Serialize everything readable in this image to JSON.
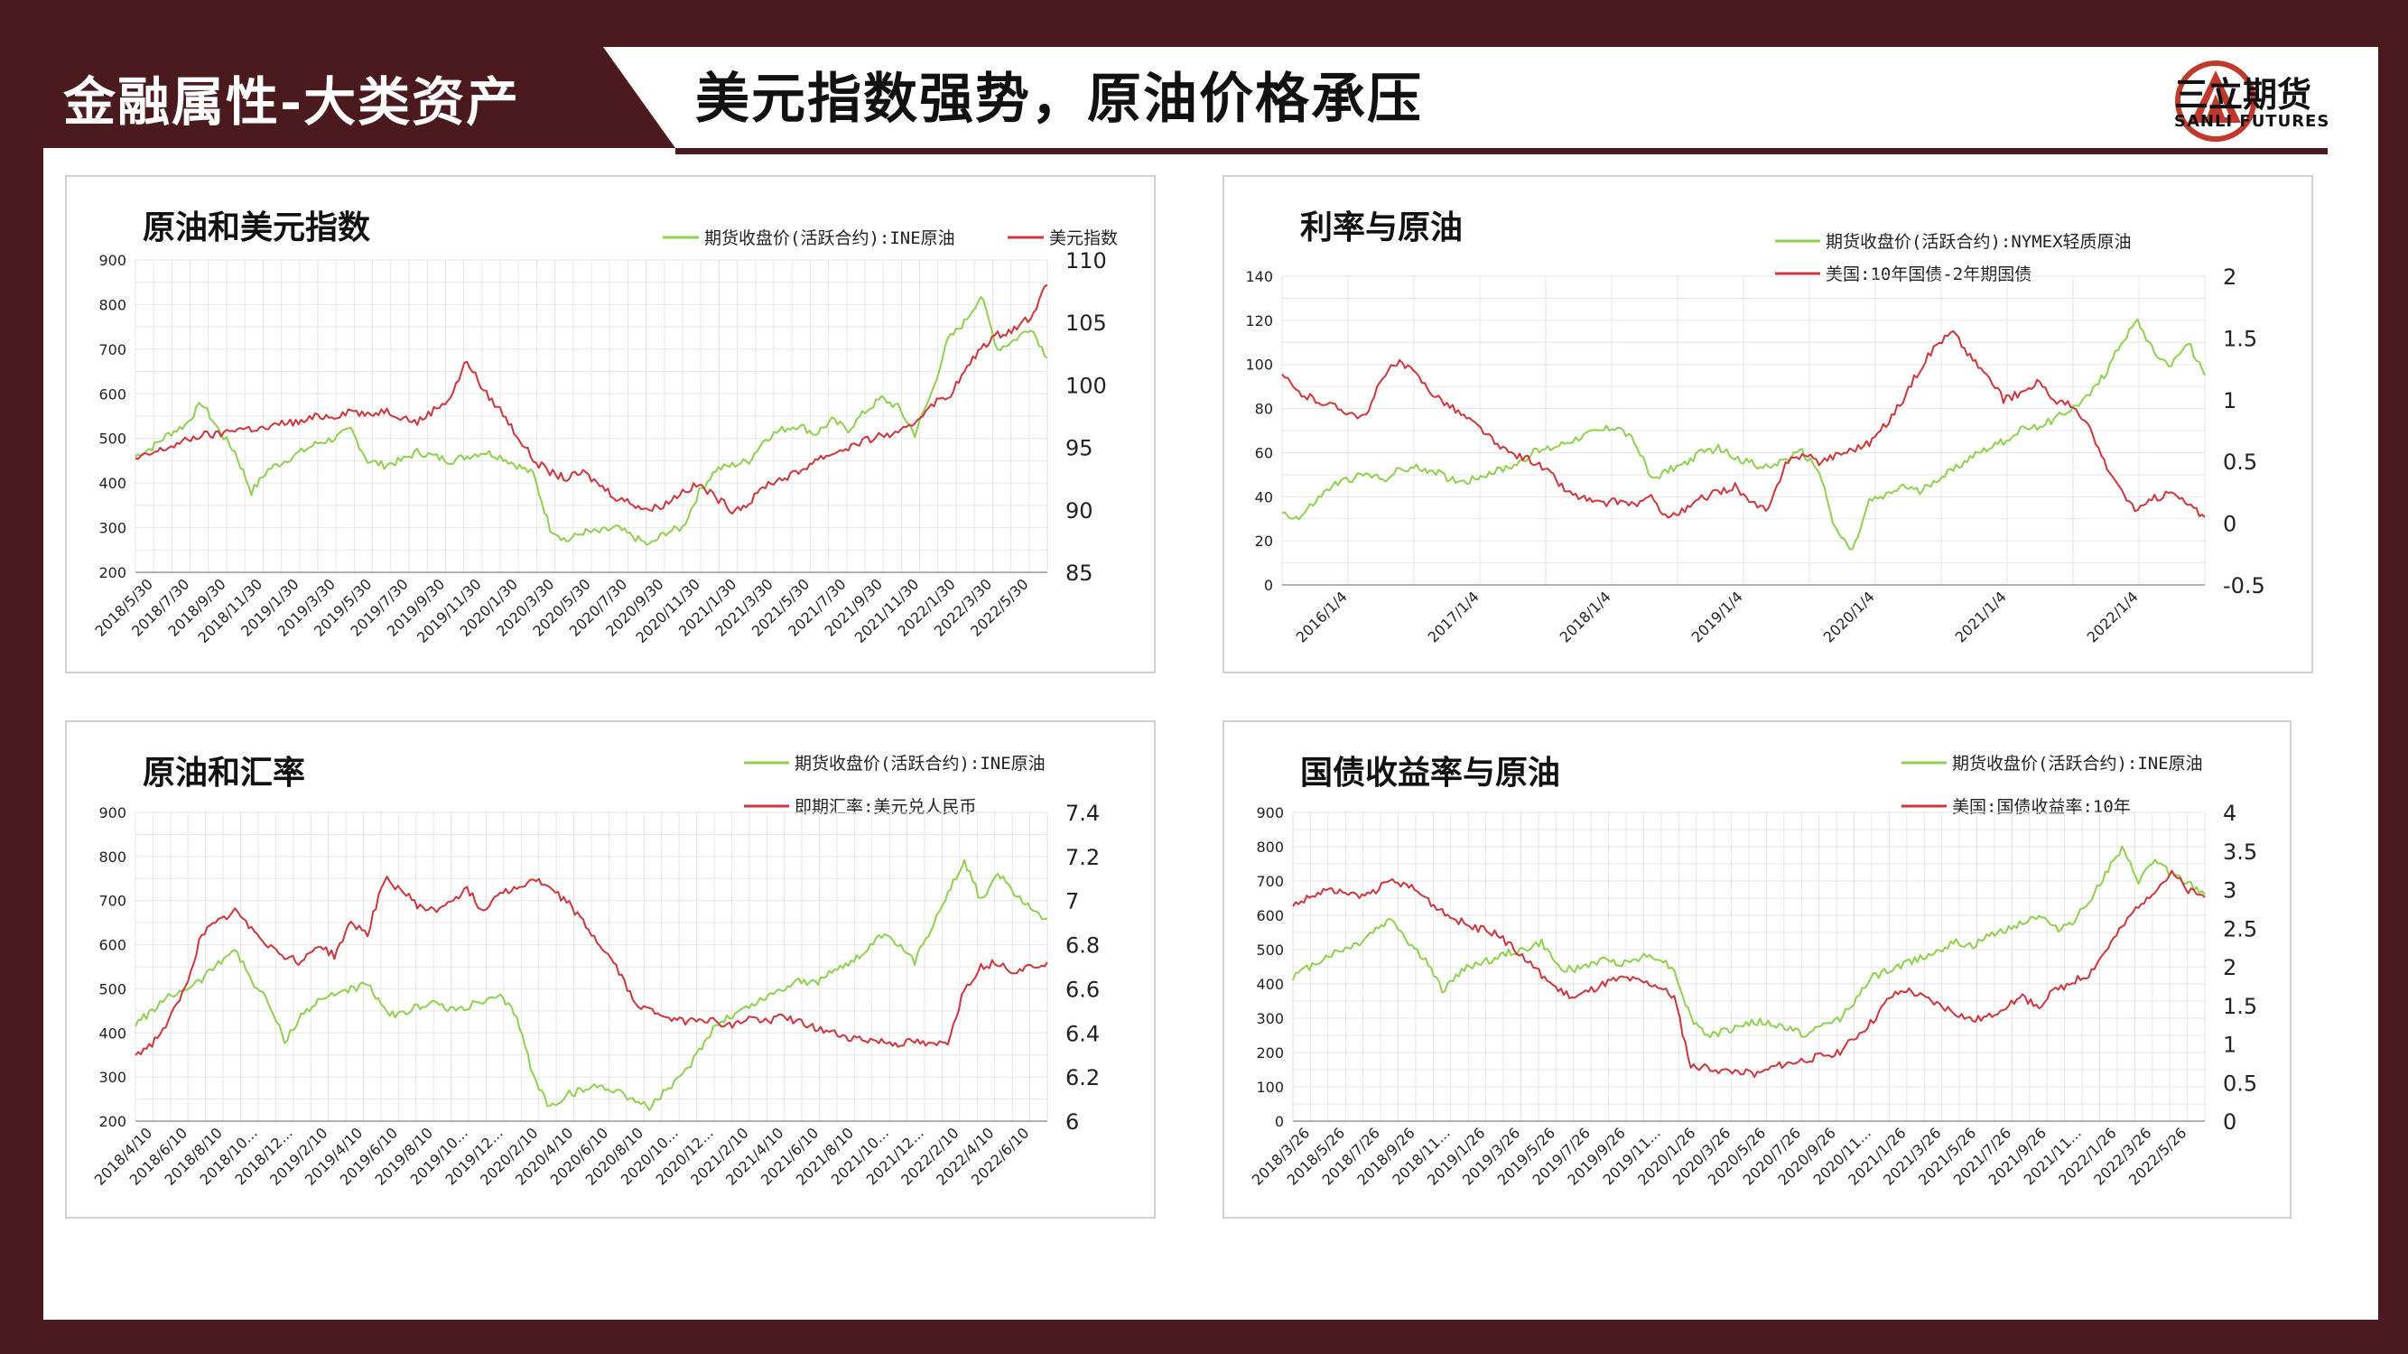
{
  "header": {
    "section_tag": "金融属性-大类资产",
    "title": "美元指数强势，原油价格承压",
    "logo_cn": "三立期货",
    "logo_en": "SANLI FUTURES"
  },
  "colors": {
    "green": "#8fd14f",
    "red": "#d0343c",
    "brand": "#4a1a1f",
    "logo_orange": "#c0392b"
  },
  "chart_data": [
    {
      "type": "line",
      "title": "原油和美元指数",
      "legend": [
        "期货收盘价(活跃合约):INE原油",
        "美元指数"
      ],
      "x_ticks": [
        "2018/5/30",
        "2018/7/30",
        "2018/9/30",
        "2018/11/30",
        "2019/1/30",
        "2019/3/30",
        "2019/5/30",
        "2019/7/30",
        "2019/9/30",
        "2019/11/30",
        "2020/1/30",
        "2020/3/30",
        "2020/5/30",
        "2020/7/30",
        "2020/9/30",
        "2020/11/30",
        "2021/1/30",
        "2021/3/30",
        "2021/5/30",
        "2021/7/30",
        "2021/9/30",
        "2021/11/30",
        "2022/1/30",
        "2022/3/30",
        "2022/5/30"
      ],
      "y_left_ticks": [
        200,
        300,
        400,
        500,
        600,
        700,
        800,
        900
      ],
      "y_left_lim": [
        200,
        900
      ],
      "y_right_ticks": [
        85,
        90,
        95,
        100,
        105,
        110
      ],
      "y_right_lim": [
        85,
        110
      ],
      "series": [
        {
          "name": "期货收盘价(活跃合约):INE原油",
          "axis": "left",
          "color": "green",
          "values": [
            460,
            480,
            510,
            530,
            580,
            520,
            470,
            380,
            430,
            450,
            470,
            490,
            500,
            520,
            450,
            440,
            450,
            470,
            460,
            450,
            460,
            470,
            460,
            440,
            420,
            300,
            270,
            290,
            290,
            300,
            280,
            260,
            290,
            300,
            380,
            430,
            440,
            450,
            500,
            520,
            530,
            510,
            540,
            520,
            560,
            590,
            570,
            510,
            600,
            720,
            760,
            820,
            700,
            720,
            750,
            680
          ]
        },
        {
          "name": "美元指数",
          "axis": "right",
          "color": "red",
          "values": [
            94,
            94.5,
            95,
            95.5,
            96,
            96,
            96.5,
            96.5,
            96.5,
            97,
            97,
            97.5,
            97.5,
            98,
            97.5,
            98,
            97.5,
            97,
            98,
            99,
            102,
            99.5,
            98,
            96,
            94,
            93,
            92.5,
            93,
            92,
            91,
            90.5,
            90,
            90.5,
            91.5,
            92,
            91,
            90,
            90.5,
            92,
            92.5,
            93,
            94,
            94.5,
            95,
            95.5,
            96,
            96,
            97,
            98.5,
            99,
            101,
            103,
            104,
            104.5,
            105.5,
            108
          ]
        }
      ]
    },
    {
      "type": "line",
      "title": "利率与原油",
      "legend": [
        "期货收盘价(活跃合约):NYMEX轻质原油",
        "美国:10年国债-2年期国债"
      ],
      "x_ticks": [
        "2016/1/4",
        "2017/1/4",
        "2018/1/4",
        "2019/1/4",
        "2020/1/4",
        "2021/1/4",
        "2022/1/4"
      ],
      "y_left_ticks": [
        0,
        20,
        40,
        60,
        80,
        100,
        120,
        140
      ],
      "y_left_lim": [
        0,
        140
      ],
      "y_right_ticks": [
        -0.5,
        0,
        0.5,
        1,
        1.5,
        2
      ],
      "y_right_lim": [
        -0.5,
        2
      ],
      "series": [
        {
          "name": "期货收盘价(活跃合约):NYMEX轻质原油",
          "axis": "left",
          "color": "green",
          "values": [
            33,
            30,
            38,
            45,
            48,
            50,
            48,
            52,
            53,
            52,
            48,
            47,
            50,
            52,
            55,
            60,
            62,
            65,
            68,
            70,
            72,
            65,
            48,
            52,
            55,
            60,
            62,
            58,
            55,
            53,
            57,
            60,
            52,
            25,
            15,
            38,
            40,
            45,
            42,
            48,
            52,
            58,
            62,
            65,
            70,
            72,
            75,
            80,
            85,
            95,
            110,
            120,
            105,
            100,
            110,
            95
          ]
        },
        {
          "name": "美国:10年国债-2年期国债",
          "axis": "right",
          "color": "red",
          "values": [
            1.2,
            1.05,
            1,
            0.95,
            0.9,
            0.85,
            1.2,
            1.3,
            1.2,
            1.05,
            0.95,
            0.85,
            0.75,
            0.6,
            0.55,
            0.5,
            0.4,
            0.25,
            0.2,
            0.15,
            0.18,
            0.15,
            0.2,
            0.05,
            0.1,
            0.2,
            0.25,
            0.3,
            0.15,
            0.1,
            0.5,
            0.55,
            0.5,
            0.55,
            0.6,
            0.65,
            0.8,
            1,
            1.25,
            1.45,
            1.55,
            1.35,
            1.2,
            1,
            1.05,
            1.15,
            1,
            0.95,
            0.8,
            0.5,
            0.25,
            0.1,
            0.2,
            0.25,
            0.15,
            0.05
          ]
        }
      ]
    },
    {
      "type": "line",
      "title": "原油和汇率",
      "legend": [
        "期货收盘价(活跃合约):INE原油",
        "即期汇率:美元兑人民币"
      ],
      "x_ticks": [
        "2018/4/10",
        "2018/6/10",
        "2018/8/10",
        "2018/10...",
        "2018/12...",
        "2019/2/10",
        "2019/4/10",
        "2019/6/10",
        "2019/8/10",
        "2019/10...",
        "2019/12...",
        "2020/2/10",
        "2020/4/10",
        "2020/6/10",
        "2020/8/10",
        "2020/10...",
        "2020/12...",
        "2021/2/10",
        "2021/4/10",
        "2021/6/10",
        "2021/8/10",
        "2021/10...",
        "2021/12...",
        "2022/2/10",
        "2022/4/10",
        "2022/6/10"
      ],
      "y_left_ticks": [
        200,
        300,
        400,
        500,
        600,
        700,
        800,
        900
      ],
      "y_left_lim": [
        200,
        900
      ],
      "y_right_ticks": [
        6,
        6.2,
        6.4,
        6.6,
        6.8,
        7,
        7.2,
        7.4
      ],
      "y_right_lim": [
        6,
        7.4
      ],
      "series": [
        {
          "name": "期货收盘价(活跃合约):INE原油",
          "axis": "left",
          "color": "green",
          "values": [
            420,
            450,
            480,
            500,
            520,
            560,
            590,
            520,
            470,
            380,
            440,
            470,
            490,
            500,
            510,
            450,
            440,
            460,
            470,
            450,
            460,
            470,
            480,
            440,
            300,
            230,
            260,
            270,
            280,
            270,
            250,
            230,
            270,
            300,
            360,
            420,
            440,
            460,
            480,
            500,
            520,
            510,
            540,
            560,
            580,
            620,
            600,
            560,
            640,
            720,
            790,
            700,
            760,
            720,
            680,
            660
          ]
        },
        {
          "name": "即期汇率:美元兑人民币",
          "axis": "right",
          "color": "red",
          "values": [
            6.3,
            6.35,
            6.45,
            6.6,
            6.85,
            6.9,
            6.95,
            6.88,
            6.8,
            6.75,
            6.72,
            6.8,
            6.75,
            6.9,
            6.85,
            7.1,
            7.05,
            6.98,
            6.95,
            7,
            7.05,
            6.95,
            7.05,
            7.05,
            7.1,
            7.05,
            7,
            6.9,
            6.8,
            6.7,
            6.55,
            6.5,
            6.48,
            6.45,
            6.47,
            6.45,
            6.43,
            6.47,
            6.45,
            6.48,
            6.45,
            6.42,
            6.4,
            6.38,
            6.37,
            6.36,
            6.35,
            6.36,
            6.34,
            6.36,
            6.6,
            6.7,
            6.72,
            6.68,
            6.7,
            6.72
          ]
        }
      ]
    },
    {
      "type": "line",
      "title": "国债收益率与原油",
      "legend": [
        "期货收盘价(活跃合约):INE原油",
        "美国:国债收益率:10年"
      ],
      "x_ticks": [
        "2018/3/26",
        "2018/5/26",
        "2018/7/26",
        "2018/9/26",
        "2018/11...",
        "2019/1/26",
        "2019/3/26",
        "2019/5/26",
        "2019/7/26",
        "2019/9/26",
        "2019/11...",
        "2020/1/26",
        "2020/3/26",
        "2020/5/26",
        "2020/7/26",
        "2020/9/26",
        "2020/11...",
        "2021/1/26",
        "2021/3/26",
        "2021/5/26",
        "2021/7/26",
        "2021/9/26",
        "2021/11...",
        "2022/1/26",
        "2022/3/26",
        "2022/5/26"
      ],
      "y_left_ticks": [
        0,
        100,
        200,
        300,
        400,
        500,
        600,
        700,
        800,
        900
      ],
      "y_left_lim": [
        0,
        900
      ],
      "y_right_ticks": [
        0,
        0.5,
        1,
        1.5,
        2,
        2.5,
        3,
        3.5,
        4
      ],
      "y_right_lim": [
        0,
        4
      ],
      "series": [
        {
          "name": "期货收盘价(活跃合约):INE原油",
          "axis": "left",
          "color": "green",
          "values": [
            420,
            450,
            480,
            500,
            520,
            560,
            590,
            520,
            470,
            380,
            430,
            460,
            470,
            490,
            500,
            520,
            450,
            440,
            460,
            470,
            460,
            480,
            480,
            440,
            300,
            250,
            260,
            280,
            290,
            280,
            270,
            250,
            280,
            300,
            360,
            420,
            440,
            460,
            480,
            500,
            520,
            510,
            540,
            560,
            580,
            600,
            560,
            580,
            640,
            720,
            790,
            700,
            760,
            720,
            690,
            660
          ]
        },
        {
          "name": "美国:国债收益率:10年",
          "axis": "right",
          "color": "red",
          "values": [
            2.8,
            2.9,
            3,
            2.95,
            2.9,
            3,
            3.1,
            3.05,
            2.9,
            2.7,
            2.6,
            2.5,
            2.45,
            2.3,
            2.1,
            1.9,
            1.7,
            1.6,
            1.7,
            1.8,
            1.85,
            1.8,
            1.75,
            1.6,
            0.7,
            0.7,
            0.65,
            0.65,
            0.6,
            0.7,
            0.75,
            0.8,
            0.85,
            0.9,
            1.1,
            1.3,
            1.6,
            1.7,
            1.6,
            1.5,
            1.4,
            1.3,
            1.35,
            1.5,
            1.6,
            1.5,
            1.7,
            1.8,
            1.9,
            2.2,
            2.5,
            2.8,
            3,
            3.2,
            3,
            2.9
          ]
        }
      ]
    }
  ]
}
